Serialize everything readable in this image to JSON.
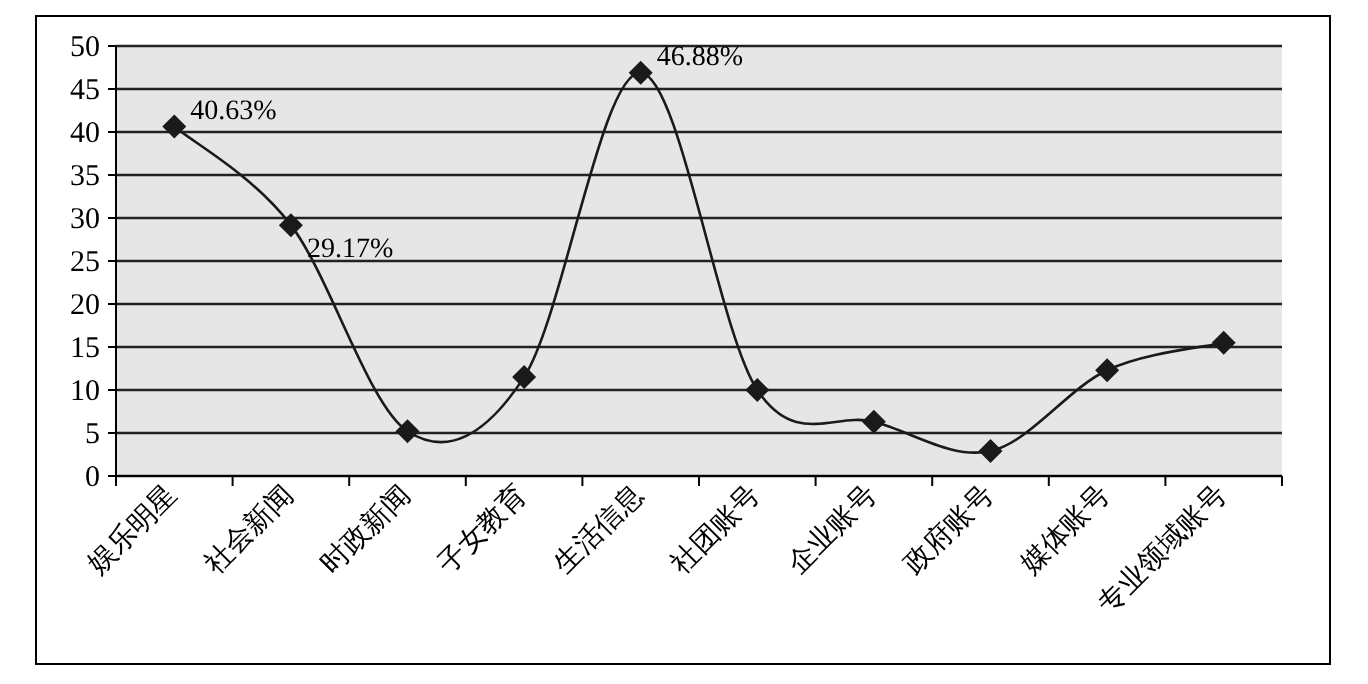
{
  "chart_data": {
    "type": "line",
    "categories": [
      "娱乐明星",
      "社会新闻",
      "时政新闻",
      "子女教育",
      "生活信息",
      "社团账号",
      "企业账号",
      "政府账号",
      "媒体账号",
      "专业领域账号"
    ],
    "values": [
      40.63,
      29.17,
      5.2,
      11.5,
      46.88,
      10,
      6.3,
      2.9,
      12.3,
      15.5
    ],
    "value_labels": [
      "40.63%",
      "29.17%",
      null,
      null,
      "46.88%",
      null,
      null,
      null,
      null,
      null
    ],
    "color": "#1a1a1a",
    "marker": "diamond",
    "line_style": "solid",
    "grid": "y",
    "ylim": [
      0,
      50
    ],
    "yticks": [
      0,
      5,
      10,
      15,
      20,
      25,
      30,
      35,
      40,
      45,
      50
    ]
  }
}
